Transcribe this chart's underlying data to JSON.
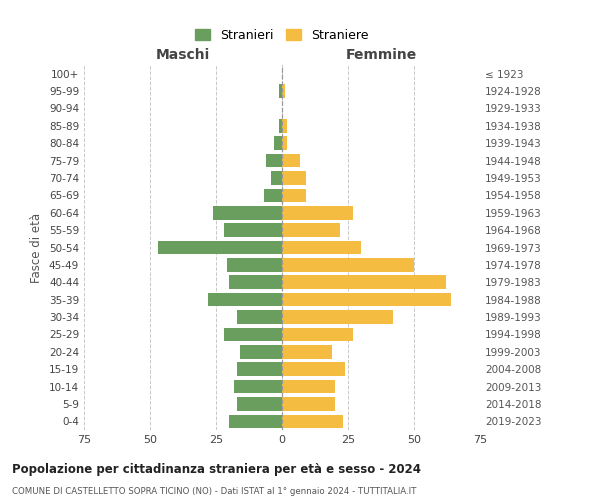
{
  "age_groups": [
    "100+",
    "95-99",
    "90-94",
    "85-89",
    "80-84",
    "75-79",
    "70-74",
    "65-69",
    "60-64",
    "55-59",
    "50-54",
    "45-49",
    "40-44",
    "35-39",
    "30-34",
    "25-29",
    "20-24",
    "15-19",
    "10-14",
    "5-9",
    "0-4"
  ],
  "birth_years": [
    "≤ 1923",
    "1924-1928",
    "1929-1933",
    "1934-1938",
    "1939-1943",
    "1944-1948",
    "1949-1953",
    "1954-1958",
    "1959-1963",
    "1964-1968",
    "1969-1973",
    "1974-1978",
    "1979-1983",
    "1984-1988",
    "1989-1993",
    "1994-1998",
    "1999-2003",
    "2004-2008",
    "2009-2013",
    "2014-2018",
    "2019-2023"
  ],
  "maschi": [
    0,
    1,
    0,
    1,
    3,
    6,
    4,
    7,
    26,
    22,
    47,
    21,
    20,
    28,
    17,
    22,
    16,
    17,
    18,
    17,
    20
  ],
  "femmine": [
    0,
    1,
    0,
    2,
    2,
    7,
    9,
    9,
    27,
    22,
    30,
    50,
    62,
    64,
    42,
    27,
    19,
    24,
    20,
    20,
    23
  ],
  "color_maschi": "#6a9e5e",
  "color_femmine": "#f5bc42",
  "title_main": "Popolazione per cittadinanza straniera per età e sesso - 2024",
  "title_sub": "COMUNE DI CASTELLETTO SOPRA TICINO (NO) - Dati ISTAT al 1° gennaio 2024 - TUTTITALIA.IT",
  "xlabel_left": "Maschi",
  "xlabel_right": "Femmine",
  "ylabel_left": "Fasce di età",
  "legend_maschi": "Stranieri",
  "legend_femmine": "Straniere",
  "xlim": 75,
  "background_color": "#ffffff",
  "grid_color": "#c8c8c8"
}
